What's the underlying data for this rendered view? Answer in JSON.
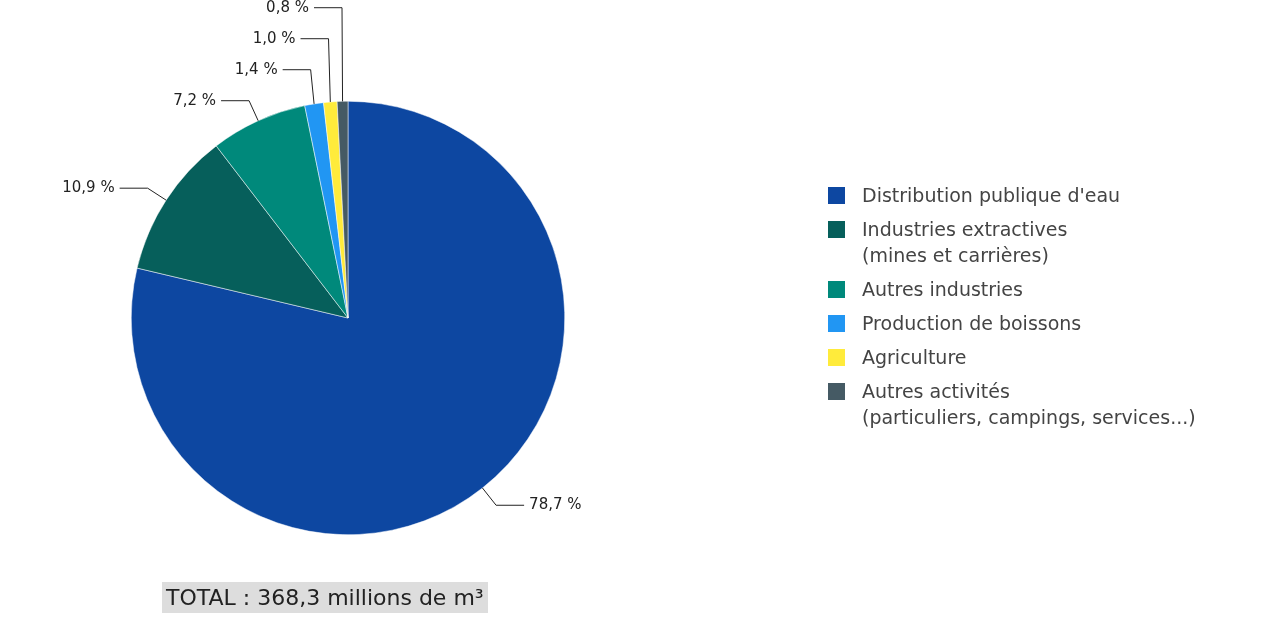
{
  "chart_data": {
    "type": "pie",
    "categories": [
      "Distribution publique d'eau",
      "Industries extractives\n(mines et carrières)",
      "Autres industries",
      "Production de boissons",
      "Agriculture",
      "Autres activités\n(particuliers, campings, services...)"
    ],
    "values": [
      78.7,
      10.9,
      7.2,
      1.4,
      1.0,
      0.8
    ],
    "value_labels": [
      "78,7 %",
      "10,9 %",
      "7,2 %",
      "1,4 %",
      "1,0 %",
      "0,8 %"
    ],
    "colors": [
      "#0d47a1",
      "#065f5b",
      "#00897b",
      "#2196f3",
      "#ffeb3b",
      "#455a64"
    ],
    "legend": "right",
    "annotations": [
      "TOTAL : 368,3 millions de m³"
    ]
  }
}
